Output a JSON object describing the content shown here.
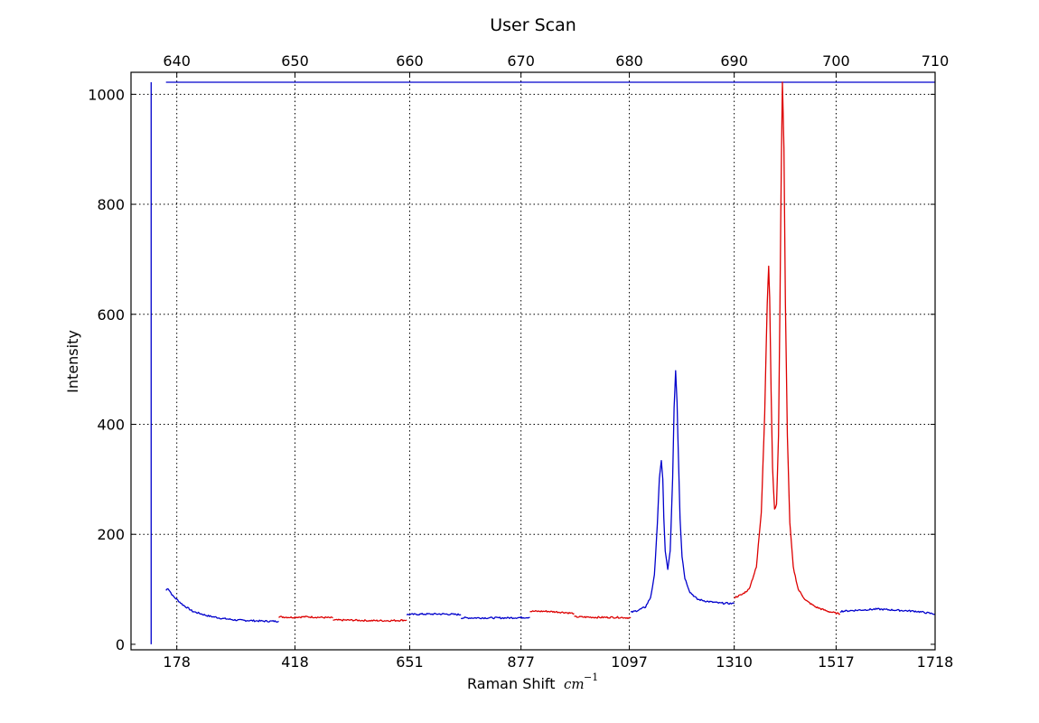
{
  "chart_data": {
    "type": "line",
    "title": "User Scan",
    "xlabel": "Raman Shift",
    "xlabel_unit": "cm",
    "xlabel_unit_exp": "−1",
    "ylabel": "Intensity",
    "xlim": [
      85,
      1718
    ],
    "ylim": [
      -10,
      1040
    ],
    "grid": true,
    "bottom_ticks": [
      "178",
      "418",
      "651",
      "877",
      "1097",
      "1310",
      "1517",
      "1718"
    ],
    "bottom_tick_positions": [
      178,
      418,
      651,
      877,
      1097,
      1310,
      1517,
      1718
    ],
    "top_ticks": [
      "640",
      "650",
      "660",
      "670",
      "680",
      "690",
      "700",
      "710"
    ],
    "top_tick_positions": [
      178,
      418,
      651,
      877,
      1097,
      1310,
      1517,
      1718
    ],
    "y_ticks": [
      0,
      200,
      400,
      600,
      800,
      1000
    ],
    "colors": {
      "blue": "#0000cc",
      "red": "#dd0000",
      "grid": "#000000"
    },
    "series": [
      {
        "color": "blue",
        "kind": "marker",
        "x": [
          126,
          126
        ],
        "y": [
          1022,
          0
        ]
      },
      {
        "color": "blue",
        "kind": "marker",
        "x": [
          156,
          1718
        ],
        "y": [
          1022,
          1022
        ]
      },
      {
        "color": "blue",
        "x": [
          156,
          160,
          170,
          190,
          210,
          240,
          270,
          300,
          330,
          360,
          385
        ],
        "y": [
          98,
          102,
          88,
          72,
          60,
          52,
          47,
          44,
          43,
          42,
          42
        ]
      },
      {
        "color": "red",
        "x": [
          385,
          410,
          440,
          470,
          495
        ],
        "y": [
          50,
          49,
          50,
          49,
          48
        ]
      },
      {
        "color": "red",
        "x": [
          495,
          530,
          570,
          610,
          645
        ],
        "y": [
          44,
          44,
          43,
          43,
          44
        ]
      },
      {
        "color": "blue",
        "x": [
          645,
          680,
          720,
          755
        ],
        "y": [
          54,
          55,
          55,
          54
        ]
      },
      {
        "color": "blue",
        "x": [
          755,
          800,
          850,
          895
        ],
        "y": [
          48,
          48,
          48,
          49
        ]
      },
      {
        "color": "red",
        "x": [
          895,
          930,
          965,
          985
        ],
        "y": [
          60,
          60,
          58,
          56
        ]
      },
      {
        "color": "red",
        "x": [
          985,
          1030,
          1075,
          1100
        ],
        "y": [
          50,
          49,
          49,
          48
        ]
      },
      {
        "color": "blue",
        "x": [
          1100,
          1115,
          1130,
          1140,
          1148,
          1154,
          1158,
          1162,
          1165,
          1167,
          1170,
          1175,
          1180,
          1185,
          1188,
          1191,
          1194,
          1197,
          1200,
          1204,
          1210,
          1220,
          1235,
          1255,
          1280,
          1310
        ],
        "y": [
          58,
          62,
          68,
          85,
          125,
          220,
          300,
          335,
          300,
          230,
          170,
          135,
          170,
          300,
          430,
          498,
          440,
          330,
          230,
          160,
          120,
          95,
          82,
          78,
          75,
          74
        ]
      },
      {
        "color": "red",
        "x": [
          1310,
          1325,
          1340,
          1355,
          1365,
          1372,
          1377,
          1380,
          1382,
          1385,
          1388,
          1392,
          1396,
          1400,
          1403,
          1406,
          1408,
          1411,
          1414,
          1418,
          1423,
          1430,
          1440,
          1455,
          1475,
          1500,
          1525
        ],
        "y": [
          85,
          90,
          100,
          140,
          240,
          420,
          620,
          688,
          630,
          460,
          320,
          245,
          255,
          380,
          620,
          900,
          1022,
          900,
          620,
          380,
          220,
          140,
          100,
          80,
          68,
          60,
          55
        ]
      },
      {
        "color": "blue",
        "x": [
          1525,
          1560,
          1600,
          1640,
          1680,
          1718
        ],
        "y": [
          60,
          62,
          64,
          62,
          60,
          55
        ]
      }
    ]
  }
}
